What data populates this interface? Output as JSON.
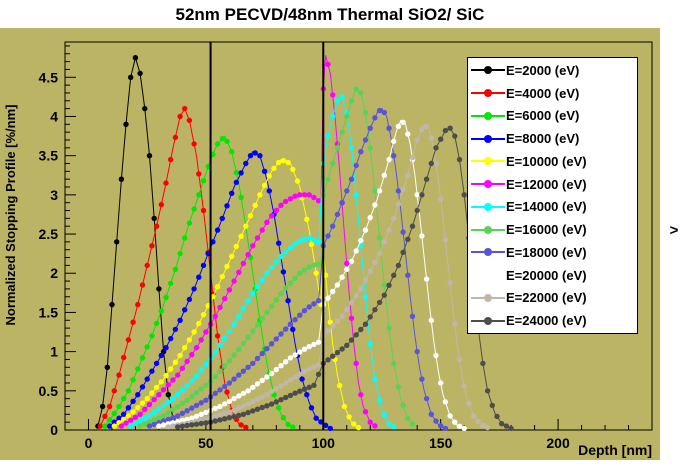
{
  "window": {
    "chevron_glyph": ">"
  },
  "title": "52nm PECVD/48nm Thermal SiO2/ SiC",
  "colors": {
    "canvas_bg": "#bcb465",
    "frame": "#000000",
    "legend_bg": "#ffffff",
    "boundary_line": "#000000",
    "text": "#000000"
  },
  "chart_data": {
    "type": "line",
    "title": "52nm PECVD/48nm Thermal SiO2/ SiC",
    "xlabel": "Depth [nm]",
    "ylabel": "Normalized Stopping Profile [%/nm]",
    "xlim": [
      -10,
      240
    ],
    "ylim": [
      0,
      4.95
    ],
    "xticks": [
      0,
      50,
      100,
      150,
      200
    ],
    "yticks": [
      0,
      0.5,
      1,
      1.5,
      2,
      2.5,
      3,
      3.5,
      4,
      4.5
    ],
    "grid": false,
    "legend_position": "top-right",
    "marker": "filled-circle",
    "boundary_lines_x": [
      52,
      100
    ],
    "series": [
      {
        "name": "E=2000 (eV)",
        "color": "#000000",
        "points": [
          [
            4,
            0.05
          ],
          [
            6,
            0.3
          ],
          [
            8,
            0.8
          ],
          [
            10,
            1.6
          ],
          [
            12,
            2.4
          ],
          [
            14,
            3.2
          ],
          [
            16,
            3.9
          ],
          [
            18,
            4.5
          ],
          [
            20,
            4.75
          ],
          [
            22,
            4.55
          ],
          [
            24,
            4.1
          ],
          [
            26,
            3.5
          ],
          [
            28,
            2.7
          ],
          [
            30,
            1.8
          ],
          [
            32,
            1.0
          ],
          [
            34,
            0.45
          ],
          [
            36,
            0.15
          ],
          [
            39,
            0.04
          ]
        ]
      },
      {
        "name": "E=4000 (eV)",
        "color": "#ff0000",
        "points": [
          [
            5,
            0.05
          ],
          [
            9,
            0.3
          ],
          [
            13,
            0.7
          ],
          [
            17,
            1.15
          ],
          [
            21,
            1.6
          ],
          [
            25,
            2.1
          ],
          [
            29,
            2.6
          ],
          [
            33,
            3.15
          ],
          [
            36,
            3.6
          ],
          [
            39,
            4.0
          ],
          [
            41,
            4.1
          ],
          [
            43,
            3.95
          ],
          [
            46,
            3.5
          ],
          [
            49,
            2.8
          ],
          [
            52,
            2.0
          ],
          [
            55,
            1.2
          ],
          [
            58,
            0.6
          ],
          [
            61,
            0.25
          ],
          [
            64,
            0.08
          ],
          [
            68,
            0.02
          ]
        ]
      },
      {
        "name": "E=6000 (eV)",
        "color": "#00e800",
        "points": [
          [
            7,
            0.05
          ],
          [
            12,
            0.25
          ],
          [
            17,
            0.5
          ],
          [
            22,
            0.85
          ],
          [
            27,
            1.2
          ],
          [
            32,
            1.6
          ],
          [
            37,
            2.05
          ],
          [
            42,
            2.55
          ],
          [
            47,
            3.0
          ],
          [
            52,
            3.45
          ],
          [
            55,
            3.65
          ],
          [
            58,
            3.75
          ],
          [
            61,
            3.55
          ],
          [
            64,
            3.15
          ],
          [
            67,
            2.6
          ],
          [
            70,
            2.0
          ],
          [
            73,
            1.4
          ],
          [
            76,
            0.85
          ],
          [
            79,
            0.45
          ],
          [
            82,
            0.2
          ],
          [
            85,
            0.07
          ],
          [
            88,
            0.02
          ]
        ]
      },
      {
        "name": "E=8000 (eV)",
        "color": "#0000ff",
        "points": [
          [
            9,
            0.05
          ],
          [
            15,
            0.2
          ],
          [
            21,
            0.45
          ],
          [
            27,
            0.75
          ],
          [
            33,
            1.05
          ],
          [
            39,
            1.4
          ],
          [
            45,
            1.8
          ],
          [
            51,
            2.25
          ],
          [
            57,
            2.7
          ],
          [
            62,
            3.1
          ],
          [
            67,
            3.4
          ],
          [
            70,
            3.55
          ],
          [
            73,
            3.5
          ],
          [
            76,
            3.2
          ],
          [
            79,
            2.75
          ],
          [
            82,
            2.2
          ],
          [
            85,
            1.65
          ],
          [
            88,
            1.1
          ],
          [
            91,
            0.65
          ],
          [
            94,
            0.35
          ],
          [
            97,
            0.15
          ],
          [
            100,
            0.08
          ],
          [
            103,
            0.02
          ]
        ]
      },
      {
        "name": "E=10000 (eV)",
        "color": "#ffff00",
        "points": [
          [
            11,
            0.05
          ],
          [
            18,
            0.2
          ],
          [
            25,
            0.4
          ],
          [
            32,
            0.65
          ],
          [
            39,
            0.95
          ],
          [
            46,
            1.3
          ],
          [
            53,
            1.7
          ],
          [
            60,
            2.15
          ],
          [
            67,
            2.6
          ],
          [
            73,
            3.0
          ],
          [
            78,
            3.3
          ],
          [
            82,
            3.45
          ],
          [
            86,
            3.4
          ],
          [
            90,
            3.1
          ],
          [
            94,
            2.55
          ],
          [
            97,
            2.0
          ],
          [
            99,
            1.6
          ],
          [
            100,
            2.3
          ],
          [
            102,
            1.65
          ],
          [
            104,
            1.1
          ],
          [
            106,
            0.7
          ],
          [
            109,
            0.3
          ],
          [
            112,
            0.1
          ],
          [
            115,
            0.03
          ]
        ]
      },
      {
        "name": "E=12000 (eV)",
        "color": "#ff00ff",
        "points": [
          [
            14,
            0.05
          ],
          [
            22,
            0.2
          ],
          [
            30,
            0.45
          ],
          [
            38,
            0.7
          ],
          [
            46,
            1.05
          ],
          [
            54,
            1.45
          ],
          [
            62,
            1.9
          ],
          [
            70,
            2.35
          ],
          [
            77,
            2.7
          ],
          [
            83,
            2.9
          ],
          [
            89,
            3.0
          ],
          [
            94,
            3.0
          ],
          [
            97,
            2.95
          ],
          [
            99,
            2.9
          ],
          [
            100,
            4.35
          ],
          [
            101,
            4.78
          ],
          [
            103,
            4.55
          ],
          [
            105,
            4.0
          ],
          [
            107,
            3.3
          ],
          [
            109,
            2.5
          ],
          [
            111,
            1.75
          ],
          [
            113,
            1.1
          ],
          [
            115,
            0.6
          ],
          [
            117,
            0.3
          ],
          [
            120,
            0.1
          ],
          [
            123,
            0.03
          ]
        ]
      },
      {
        "name": "E=14000 (eV)",
        "color": "#00ffff",
        "points": [
          [
            18,
            0.05
          ],
          [
            27,
            0.2
          ],
          [
            36,
            0.4
          ],
          [
            45,
            0.65
          ],
          [
            53,
            0.95
          ],
          [
            61,
            1.3
          ],
          [
            69,
            1.7
          ],
          [
            76,
            2.0
          ],
          [
            83,
            2.25
          ],
          [
            89,
            2.4
          ],
          [
            94,
            2.45
          ],
          [
            98,
            2.4
          ],
          [
            100,
            3.4
          ],
          [
            102,
            3.75
          ],
          [
            104,
            4.0
          ],
          [
            106,
            4.2
          ],
          [
            108,
            4.25
          ],
          [
            110,
            4.05
          ],
          [
            112,
            3.6
          ],
          [
            114,
            3.0
          ],
          [
            116,
            2.35
          ],
          [
            118,
            1.7
          ],
          [
            120,
            1.1
          ],
          [
            122,
            0.65
          ],
          [
            125,
            0.25
          ],
          [
            128,
            0.08
          ],
          [
            131,
            0.02
          ]
        ]
      },
      {
        "name": "E=16000 (eV)",
        "color": "#59d354",
        "points": [
          [
            22,
            0.05
          ],
          [
            32,
            0.18
          ],
          [
            42,
            0.38
          ],
          [
            52,
            0.62
          ],
          [
            60,
            0.88
          ],
          [
            68,
            1.18
          ],
          [
            76,
            1.5
          ],
          [
            83,
            1.78
          ],
          [
            90,
            2.0
          ],
          [
            95,
            2.1
          ],
          [
            99,
            2.12
          ],
          [
            100,
            3.0
          ],
          [
            103,
            3.3
          ],
          [
            106,
            3.6
          ],
          [
            109,
            3.9
          ],
          [
            112,
            4.2
          ],
          [
            114,
            4.35
          ],
          [
            116,
            4.3
          ],
          [
            118,
            4.05
          ],
          [
            120,
            3.6
          ],
          [
            122,
            3.05
          ],
          [
            124,
            2.45
          ],
          [
            126,
            1.85
          ],
          [
            128,
            1.3
          ],
          [
            130,
            0.85
          ],
          [
            133,
            0.4
          ],
          [
            136,
            0.15
          ],
          [
            139,
            0.04
          ]
        ]
      },
      {
        "name": "E=18000 (eV)",
        "color": "#5954d9",
        "points": [
          [
            26,
            0.05
          ],
          [
            38,
            0.18
          ],
          [
            50,
            0.38
          ],
          [
            60,
            0.6
          ],
          [
            70,
            0.85
          ],
          [
            78,
            1.1
          ],
          [
            86,
            1.35
          ],
          [
            93,
            1.55
          ],
          [
            98,
            1.65
          ],
          [
            100,
            2.35
          ],
          [
            104,
            2.6
          ],
          [
            108,
            2.9
          ],
          [
            112,
            3.2
          ],
          [
            116,
            3.55
          ],
          [
            120,
            3.85
          ],
          [
            123,
            4.05
          ],
          [
            125,
            4.1
          ],
          [
            127,
            4.0
          ],
          [
            129,
            3.7
          ],
          [
            131,
            3.3
          ],
          [
            133,
            2.8
          ],
          [
            135,
            2.25
          ],
          [
            137,
            1.7
          ],
          [
            139,
            1.2
          ],
          [
            141,
            0.8
          ],
          [
            143,
            0.5
          ],
          [
            146,
            0.2
          ],
          [
            149,
            0.07
          ],
          [
            152,
            0.02
          ]
        ]
      },
      {
        "name": "E=20000 (eV)",
        "color": "#fefefe",
        "points": [
          [
            30,
            0.05
          ],
          [
            44,
            0.15
          ],
          [
            56,
            0.3
          ],
          [
            68,
            0.5
          ],
          [
            78,
            0.72
          ],
          [
            86,
            0.92
          ],
          [
            93,
            1.05
          ],
          [
            98,
            1.12
          ],
          [
            100,
            1.6
          ],
          [
            106,
            1.85
          ],
          [
            112,
            2.15
          ],
          [
            118,
            2.55
          ],
          [
            123,
            2.95
          ],
          [
            128,
            3.45
          ],
          [
            131,
            3.8
          ],
          [
            133,
            3.95
          ],
          [
            135,
            3.9
          ],
          [
            137,
            3.65
          ],
          [
            139,
            3.25
          ],
          [
            141,
            2.75
          ],
          [
            143,
            2.2
          ],
          [
            145,
            1.65
          ],
          [
            147,
            1.15
          ],
          [
            149,
            0.75
          ],
          [
            151,
            0.45
          ],
          [
            154,
            0.18
          ],
          [
            157,
            0.06
          ],
          [
            160,
            0.02
          ]
        ]
      },
      {
        "name": "E=22000 (eV)",
        "color": "#c1b6ac",
        "points": [
          [
            34,
            0.04
          ],
          [
            48,
            0.12
          ],
          [
            62,
            0.25
          ],
          [
            74,
            0.42
          ],
          [
            84,
            0.6
          ],
          [
            92,
            0.75
          ],
          [
            98,
            0.83
          ],
          [
            100,
            1.2
          ],
          [
            108,
            1.45
          ],
          [
            116,
            1.8
          ],
          [
            124,
            2.25
          ],
          [
            130,
            2.7
          ],
          [
            136,
            3.25
          ],
          [
            140,
            3.7
          ],
          [
            143,
            3.9
          ],
          [
            145,
            3.85
          ],
          [
            147,
            3.6
          ],
          [
            149,
            3.2
          ],
          [
            151,
            2.7
          ],
          [
            153,
            2.15
          ],
          [
            155,
            1.6
          ],
          [
            157,
            1.1
          ],
          [
            159,
            0.7
          ],
          [
            161,
            0.42
          ],
          [
            164,
            0.18
          ],
          [
            167,
            0.07
          ],
          [
            171,
            0.02
          ]
        ]
      },
      {
        "name": "E=24000 (eV)",
        "color": "#4d4d4d",
        "points": [
          [
            38,
            0.04
          ],
          [
            52,
            0.1
          ],
          [
            66,
            0.2
          ],
          [
            78,
            0.33
          ],
          [
            88,
            0.47
          ],
          [
            96,
            0.57
          ],
          [
            100,
            0.85
          ],
          [
            110,
            1.08
          ],
          [
            118,
            1.35
          ],
          [
            126,
            1.72
          ],
          [
            132,
            2.1
          ],
          [
            138,
            2.6
          ],
          [
            144,
            3.2
          ],
          [
            148,
            3.6
          ],
          [
            152,
            3.82
          ],
          [
            154,
            3.85
          ],
          [
            156,
            3.75
          ],
          [
            158,
            3.45
          ],
          [
            160,
            3.0
          ],
          [
            162,
            2.45
          ],
          [
            164,
            1.85
          ],
          [
            166,
            1.3
          ],
          [
            168,
            0.85
          ],
          [
            170,
            0.5
          ],
          [
            173,
            0.22
          ],
          [
            176,
            0.08
          ],
          [
            180,
            0.02
          ]
        ]
      }
    ]
  }
}
